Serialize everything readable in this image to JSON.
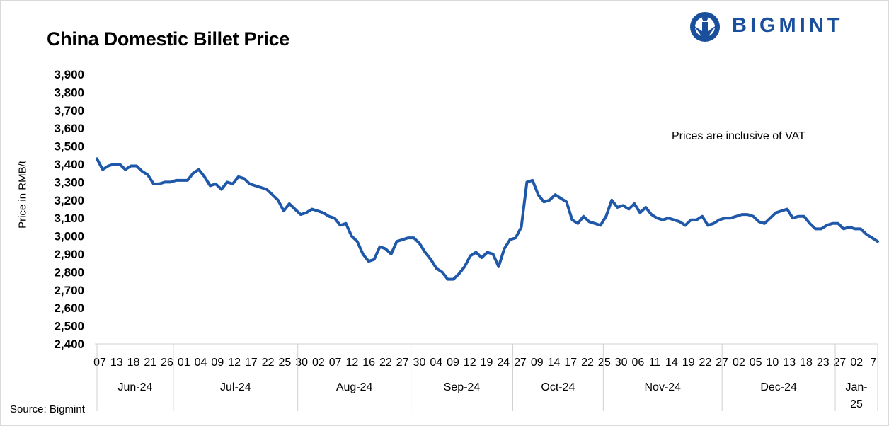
{
  "title": "China Domestic Billet Price",
  "logo": {
    "text": "BIGMINT",
    "color": "#1a4f9c"
  },
  "note": "Prices are inclusive of VAT",
  "source": "Source: Bigmint",
  "chart_data": {
    "type": "line",
    "title": "China Domestic Billet Price",
    "xlabel": "",
    "ylabel": "Price in RMB/t",
    "ylim": [
      2400,
      3900
    ],
    "yticks": [
      2400,
      2500,
      2600,
      2700,
      2800,
      2900,
      3000,
      3100,
      3200,
      3300,
      3400,
      3500,
      3600,
      3700,
      3800,
      3900
    ],
    "grid": false,
    "line_color": "#1f58a8",
    "x_tick_labels": [
      "07",
      "13",
      "18",
      "21",
      "26",
      "01",
      "04",
      "09",
      "12",
      "17",
      "22",
      "25",
      "30",
      "02",
      "07",
      "12",
      "16",
      "22",
      "27",
      "30",
      "04",
      "09",
      "12",
      "19",
      "24",
      "27",
      "09",
      "14",
      "17",
      "22",
      "25",
      "30",
      "06",
      "11",
      "14",
      "19",
      "22",
      "27",
      "02",
      "05",
      "10",
      "13",
      "18",
      "23",
      "27",
      "02",
      "7"
    ],
    "months": [
      {
        "label": "Jun-24",
        "label2": "",
        "start": 0,
        "end": 14
      },
      {
        "label": "Jul-24",
        "label2": "",
        "start": 14,
        "end": 36
      },
      {
        "label": "Aug-24",
        "label2": "",
        "start": 36,
        "end": 56
      },
      {
        "label": "Sep-24",
        "label2": "",
        "start": 56,
        "end": 74
      },
      {
        "label": "Oct-24",
        "label2": "",
        "start": 74,
        "end": 90
      },
      {
        "label": "Nov-24",
        "label2": "",
        "start": 90,
        "end": 111
      },
      {
        "label": "Dec-24",
        "label2": "",
        "start": 111,
        "end": 131
      },
      {
        "label": "Jan-",
        "label2": "25",
        "start": 131,
        "end": 136
      }
    ],
    "series": [
      {
        "name": "",
        "values": [
          3430,
          3370,
          3390,
          3400,
          3400,
          3370,
          3390,
          3390,
          3360,
          3340,
          3290,
          3290,
          3300,
          3300,
          3310,
          3310,
          3310,
          3350,
          3370,
          3330,
          3280,
          3290,
          3260,
          3300,
          3290,
          3330,
          3320,
          3290,
          3280,
          3270,
          3260,
          3230,
          3200,
          3140,
          3180,
          3150,
          3120,
          3130,
          3150,
          3140,
          3130,
          3110,
          3100,
          3060,
          3070,
          3000,
          2970,
          2900,
          2860,
          2870,
          2940,
          2930,
          2900,
          2970,
          2980,
          2990,
          2990,
          2960,
          2910,
          2870,
          2820,
          2800,
          2760,
          2760,
          2790,
          2830,
          2890,
          2910,
          2880,
          2910,
          2900,
          2830,
          2930,
          2980,
          2990,
          3050,
          3300,
          3310,
          3230,
          3190,
          3200,
          3230,
          3210,
          3190,
          3090,
          3070,
          3110,
          3080,
          3070,
          3060,
          3110,
          3200,
          3160,
          3170,
          3150,
          3180,
          3130,
          3160,
          3120,
          3100,
          3090,
          3100,
          3090,
          3080,
          3060,
          3090,
          3090,
          3110,
          3060,
          3070,
          3090,
          3100,
          3100,
          3110,
          3120,
          3120,
          3110,
          3080,
          3070,
          3100,
          3130,
          3140,
          3150,
          3100,
          3110,
          3110,
          3070,
          3040,
          3040,
          3060,
          3070,
          3070,
          3040,
          3050,
          3040,
          3040,
          3010,
          2990,
          2970
        ]
      }
    ]
  }
}
